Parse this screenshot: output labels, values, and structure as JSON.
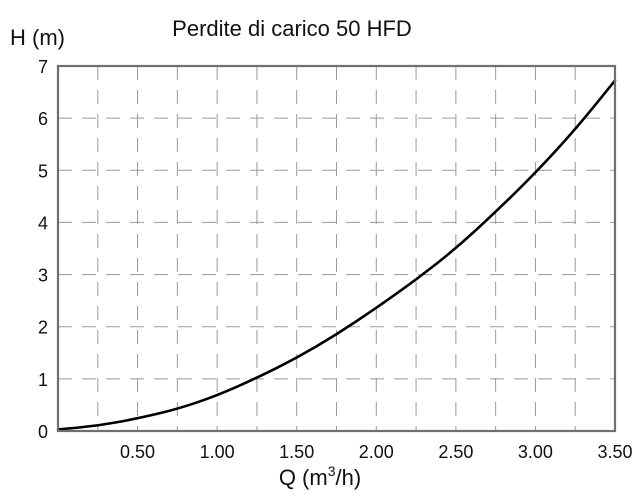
{
  "chart_data": {
    "type": "line",
    "title": "Perdite di carico 50 HFD",
    "xlabel": "Q (m",
    "xlabel_sup": "3",
    "xlabel_tail": "/h)",
    "ylabel": "H (m)",
    "xlim": [
      0,
      3.5
    ],
    "ylim": [
      0,
      7
    ],
    "x_ticks": [
      0.5,
      1.0,
      1.5,
      2.0,
      2.5,
      3.0,
      3.5
    ],
    "x_tick_labels": [
      "0.50",
      "1.00",
      "1.50",
      "2.00",
      "2.50",
      "3.00",
      "3.50"
    ],
    "y_ticks": [
      0,
      1,
      2,
      3,
      4,
      5,
      6,
      7
    ],
    "y_tick_labels": [
      "0",
      "1",
      "2",
      "3",
      "4",
      "5",
      "6",
      "7"
    ],
    "grid": true,
    "series": [
      {
        "color": "#000000",
        "x": [
          0,
          0.25,
          0.5,
          0.75,
          1.0,
          1.25,
          1.5,
          1.75,
          2.0,
          2.25,
          2.5,
          2.75,
          3.0,
          3.25,
          3.5
        ],
        "y": [
          0.03,
          0.1,
          0.24,
          0.42,
          0.68,
          1.02,
          1.4,
          1.85,
          2.36,
          2.9,
          3.5,
          4.2,
          4.95,
          5.78,
          6.72
        ]
      }
    ]
  }
}
